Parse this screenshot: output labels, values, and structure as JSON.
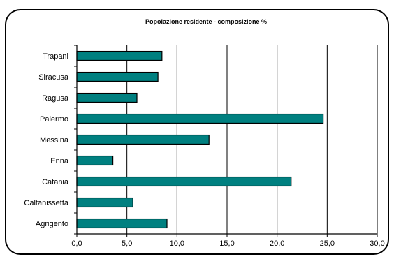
{
  "chart_data": {
    "type": "bar",
    "orientation": "horizontal",
    "title": "Popolazione residente - composizione %",
    "xlabel": "",
    "ylabel": "",
    "categories": [
      "Agrigento",
      "Caltanissetta",
      "Catania",
      "Enna",
      "Messina",
      "Palermo",
      "Ragusa",
      "Siracusa",
      "Trapani"
    ],
    "values": [
      9.0,
      5.6,
      21.4,
      3.6,
      13.2,
      24.6,
      6.0,
      8.1,
      8.5
    ],
    "xlim": [
      0,
      30
    ],
    "xticks": [
      "0,0",
      "5,0",
      "10,0",
      "15,0",
      "20,0",
      "25,0",
      "30,0"
    ],
    "grid": "vertical major gridlines",
    "legend": "none",
    "colors": {
      "bar_fill": "#008080",
      "bar_stroke": "#000000",
      "gridline": "#000000",
      "background": "#ffffff"
    }
  }
}
